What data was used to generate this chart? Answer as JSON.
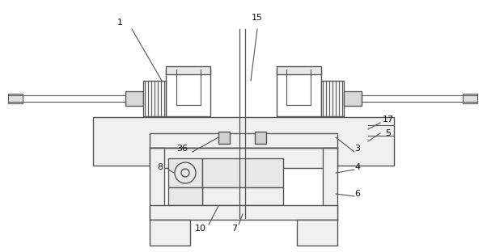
{
  "bg_color": "#ffffff",
  "line_color": "#555555",
  "lw": 1.0,
  "fig_width": 6.02,
  "fig_height": 3.12,
  "dpi": 100
}
